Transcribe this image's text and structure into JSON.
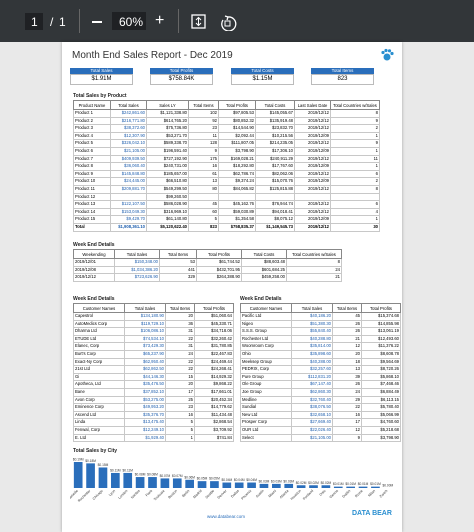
{
  "toolbar": {
    "page": "1",
    "page_count": "1",
    "zoom": "60%"
  },
  "report": {
    "title": "Month End Sales Report - Dec 2019",
    "kpis": [
      {
        "label": "Total Sales",
        "value": "$1.91M"
      },
      {
        "label": "Total Profits",
        "value": "$758.84K"
      },
      {
        "label": "Total Costs",
        "value": "$1.15M"
      },
      {
        "label": "Total Items",
        "value": "823"
      }
    ]
  },
  "products": {
    "title": "Total Sales by Product",
    "headers": [
      "Product Name",
      "Total Sales",
      "Sales LY",
      "Total Items",
      "Total Profits",
      "Total Costs",
      "Last Sales Date",
      "Total Countries w/Sales"
    ],
    "rows": [
      [
        "Product 1",
        "$242,861.60",
        "$1,121,338.80",
        "102",
        "$97,805.53",
        "$145,055.67",
        "2019/12/12",
        "8"
      ],
      [
        "Product 2",
        "$216,771.80",
        "$614,765.20",
        "92",
        "$80,852.32",
        "$135,919.48",
        "2019/12/12",
        "9"
      ],
      [
        "Product 3",
        "$38,372.60",
        "$75,736.80",
        "23",
        "$14,544.90",
        "$23,832.70",
        "2019/12/12",
        "2"
      ],
      [
        "Product 4",
        "$12,307.90",
        "$53,271.70",
        "11",
        "$2,092.44",
        "$10,215.56",
        "2019/12/09",
        "1"
      ],
      [
        "Product 5",
        "$326,042.10",
        "$589,338.70",
        "128",
        "$111,807.05",
        "$214,235.05",
        "2019/12/12",
        "9"
      ],
      [
        "Product 6",
        "$21,105.00",
        "$196,591.40",
        "9",
        "$3,798.90",
        "$17,306.10",
        "2019/12/09",
        "1"
      ],
      [
        "Product 7",
        "$409,939.50",
        "$727,192.90",
        "175",
        "$169,028.21",
        "$240,911.29",
        "2019/12/12",
        "11"
      ],
      [
        "Product 8",
        "$36,060.40",
        "$240,731.00",
        "16",
        "$18,292.80",
        "$17,767.60",
        "2019/12/09",
        "1"
      ],
      [
        "Product 9",
        "$145,848.80",
        "$185,657.00",
        "61",
        "$62,786.74",
        "$82,062.06",
        "2019/12/12",
        "6"
      ],
      [
        "Product 10",
        "$24,445.00",
        "$66,510.80",
        "13",
        "$9,374.24",
        "$15,070.76",
        "2019/12/09",
        "2"
      ],
      [
        "Product 11",
        "$209,881.70",
        "$549,299.50",
        "80",
        "$84,065.82",
        "$125,815.88",
        "2019/12/12",
        "8"
      ],
      [
        "Product 12",
        null,
        "$99,260.50",
        null,
        null,
        null,
        null,
        null
      ],
      [
        "Product 13",
        "$122,107.50",
        "$586,028.90",
        "45",
        "$45,162.76",
        "$76,944.74",
        "2019/12/12",
        "6"
      ],
      [
        "Product 14",
        "$153,049.30",
        "$316,969.10",
        "60",
        "$59,030.89",
        "$94,018.41",
        "2019/12/12",
        "4"
      ],
      [
        "Product 15",
        "$9,429.70",
        "$61,140.80",
        "5",
        "$1,354.58",
        "$8,075.12",
        "2019/12/09",
        "1"
      ]
    ],
    "total": [
      "Total",
      "$1,908,361.10",
      "$5,120,622.40",
      "823",
      "$758,835.37",
      "$1,149,545.73",
      "2019/12/12",
      "30"
    ]
  },
  "weeks": {
    "title": "Week End Details",
    "headers": [
      "Weekending",
      "Total Sales",
      "Total Items",
      "Total Profits",
      "Total Costs",
      "Total Countries w/Sales"
    ],
    "rows": [
      [
        "2019/12/01",
        "$150,348.00",
        "53",
        "$61,744.52",
        "$88,603.48",
        "8"
      ],
      [
        "2019/12/08",
        "$1,034,386.20",
        "441",
        "$432,701.95",
        "$601,684.25",
        "24"
      ],
      [
        "2019/12/12",
        "$723,626.90",
        "329",
        "$264,388.90",
        "$459,258.00",
        "21"
      ]
    ]
  },
  "customers_left": {
    "title": "Week End Details",
    "headers": [
      "Customer Names",
      "Total Sales",
      "Total Items",
      "Total Profits"
    ],
    "rows": [
      [
        "Capestrol",
        "$134,180.90",
        "20",
        "$51,060.64"
      ],
      [
        "AutoMedics Corp",
        "$119,729.10",
        "36",
        "$45,330.71"
      ],
      [
        "Dharma Ltd",
        "$106,086.10",
        "31",
        "$34,718.06"
      ],
      [
        "ETUDE Ltd",
        "$74,534.10",
        "22",
        "$32,260.42"
      ],
      [
        "Elanec, Corp",
        "$73,429.30",
        "31",
        "$31,780.85"
      ],
      [
        "Burt's Corp",
        "$65,237.90",
        "24",
        "$22,467.83"
      ],
      [
        "Exact-Ny Corp",
        "$62,950.40",
        "22",
        "$24,469.44"
      ],
      [
        "21st Ltd",
        "$62,862.50",
        "22",
        "$24,268.41"
      ],
      [
        "Gi",
        "$44,146.30",
        "15",
        "$14,929.32"
      ],
      [
        "Apotheca, Ltd",
        "$35,476.50",
        "20",
        "$9,868.22"
      ],
      [
        "Bane",
        "$37,852.10",
        "17",
        "$17,661.01"
      ],
      [
        "Avon Corp",
        "$53,275.00",
        "25",
        "$20,452.34"
      ],
      [
        "Eminence Corp",
        "$49,953.20",
        "23",
        "$14,779.62"
      ],
      [
        "Ascend Ltd",
        "$35,376.70",
        "16",
        "$11,434.48"
      ],
      [
        "Linda",
        "$13,475.40",
        "5",
        "$2,868.54"
      ],
      [
        "Fenwal, Corp",
        "$12,249.10",
        "5",
        "$3,709.92"
      ],
      [
        "E. Ltd",
        "$1,929.40",
        "1",
        "$741.84"
      ]
    ]
  },
  "customers_right": {
    "title": "Week End Details",
    "headers": [
      "Customer Names",
      "Total Sales",
      "Total Items",
      "Total Profits"
    ],
    "rows": [
      [
        "Pacific Ltd",
        "$40,186.20",
        "45",
        "$15,374.68"
      ],
      [
        "Nigeo",
        "$51,380.30",
        "26",
        "$14,855.98"
      ],
      [
        "S.S.S. Group",
        "$55,840.40",
        "26",
        "$13,061.19"
      ],
      [
        "Rochester Ltd",
        "$40,288.80",
        "21",
        "$12,493.60"
      ],
      [
        "Woomroom Corp",
        "$35,814.00",
        "12",
        "$11,376.22"
      ],
      [
        "Ohio",
        "$35,898.60",
        "20",
        "$8,608.78"
      ],
      [
        "Meeksep Group",
        "$40,288.00",
        "18",
        "$9,564.69"
      ],
      [
        "PEDRIX, Corp",
        "$32,257.60",
        "13",
        "$8,720.26"
      ],
      [
        "Pure Group",
        "$112,831.20",
        "39",
        "$5,868.10"
      ],
      [
        "Ole Group",
        "$67,147.40",
        "26",
        "$7,468.46"
      ],
      [
        "Joe Group",
        "$62,860.30",
        "24",
        "$6,884.49"
      ],
      [
        "Medline",
        "$32,760.40",
        "29",
        "$6,113.15"
      ],
      [
        "Sundial",
        "$38,076.50",
        "22",
        "$5,780.40"
      ],
      [
        "New Ltd",
        "$32,658.10",
        "16",
        "$5,066.99"
      ],
      [
        "Prosper Corp",
        "$27,669.40",
        "17",
        "$4,760.60"
      ],
      [
        "OUR Ltd",
        "$22,026.40",
        "12",
        "$5,218.68"
      ],
      [
        "Select",
        "$21,105.00",
        "9",
        "$3,798.90"
      ]
    ]
  },
  "chart_data": {
    "type": "bar",
    "title": "Total Sales by City",
    "color": "#2a6ebb",
    "categories": [
      "Marseille",
      "Rochester",
      "Chicago",
      "Lyon",
      "London",
      "Nantes",
      "Paris",
      "Toulouse",
      "Boston",
      "Berlin",
      "Madrid",
      "Seattle",
      "Denver",
      "Dallas",
      "Phoenix",
      "Austin",
      "Miami",
      "Atlanta",
      "Houston",
      "Portland",
      "Oslo",
      "Vienna",
      "Dublin",
      "Rome",
      "Milan",
      "Zurich"
    ],
    "values": [
      0.19,
      0.18,
      0.15,
      0.11,
      0.11,
      0.08,
      0.08,
      0.07,
      0.07,
      0.06,
      0.05,
      0.05,
      0.04,
      0.04,
      0.04,
      0.03,
      0.03,
      0.03,
      0.02,
      0.02,
      0.02,
      0.01,
      0.01,
      0.01,
      0.01,
      0.0
    ],
    "value_labels": [
      "$0.19M",
      "$0.18M",
      "$0.15M",
      "$0.11M",
      "$0.11M",
      "$0.08M",
      "$0.08M",
      "$0.07M",
      "$0.07M",
      "$0.06M",
      "$0.05M",
      "$0.05M",
      "$0.04M",
      "$0.04M",
      "$0.04M",
      "$0.03M",
      "$0.03M",
      "$0.03M",
      "$0.02M",
      "$0.02M",
      "$0.02M",
      "$0.01M",
      "$0.01M",
      "$0.01M",
      "$0.01M",
      "$0.00M"
    ]
  },
  "footer": {
    "url": "www.databear.com",
    "brand": "DATA BEAR"
  }
}
